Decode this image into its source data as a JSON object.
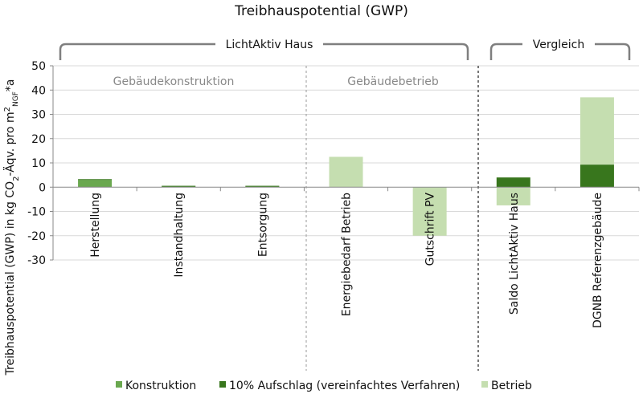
{
  "chart_data": {
    "type": "bar",
    "title": "Treibhauspotential (GWP)",
    "ylabel_parts": {
      "main": "Treibhauspotential (GWP) in kg CO",
      "co2_sub": "2",
      "mid": "-Äqv. pro m",
      "m_sup": "2",
      "ngf_sub": "NGF",
      "tail": "*a"
    },
    "ylim": [
      -30,
      50
    ],
    "yticks": [
      "50",
      "40",
      "30",
      "20",
      "10",
      "0",
      "-10",
      "-20",
      "-30"
    ],
    "grid": true,
    "categories": [
      "Herstellung",
      "Instandhaltung",
      "Entsorgung",
      "Energiebedarf Betrieb",
      "Gutschrift PV",
      "Saldo LichtAktiv Haus",
      "DGNB Referenzgebäude"
    ],
    "series": [
      {
        "name": "Konstruktion",
        "color": "#6aa84f",
        "values": [
          3.0,
          0.5,
          0.5,
          0,
          0,
          0,
          0
        ]
      },
      {
        "name": "10% Aufschlag (vereinfachtes Verfahren)",
        "color": "#38761d",
        "values": [
          0.3,
          0.05,
          0.05,
          0,
          0,
          4.0,
          9.3
        ]
      },
      {
        "name": "Betrieb",
        "color": "#c5deb0",
        "values": [
          0,
          0,
          0,
          12.5,
          -20.0,
          -7.5,
          27.7
        ]
      }
    ],
    "groups": [
      {
        "label": "LichtAktiv Haus"
      },
      {
        "label": "Vergleich"
      }
    ],
    "sublabels": [
      {
        "label": "Gebäudekonstruktion"
      },
      {
        "label": "Gebäudebetrieb"
      }
    ],
    "legend_position": "bottom"
  }
}
